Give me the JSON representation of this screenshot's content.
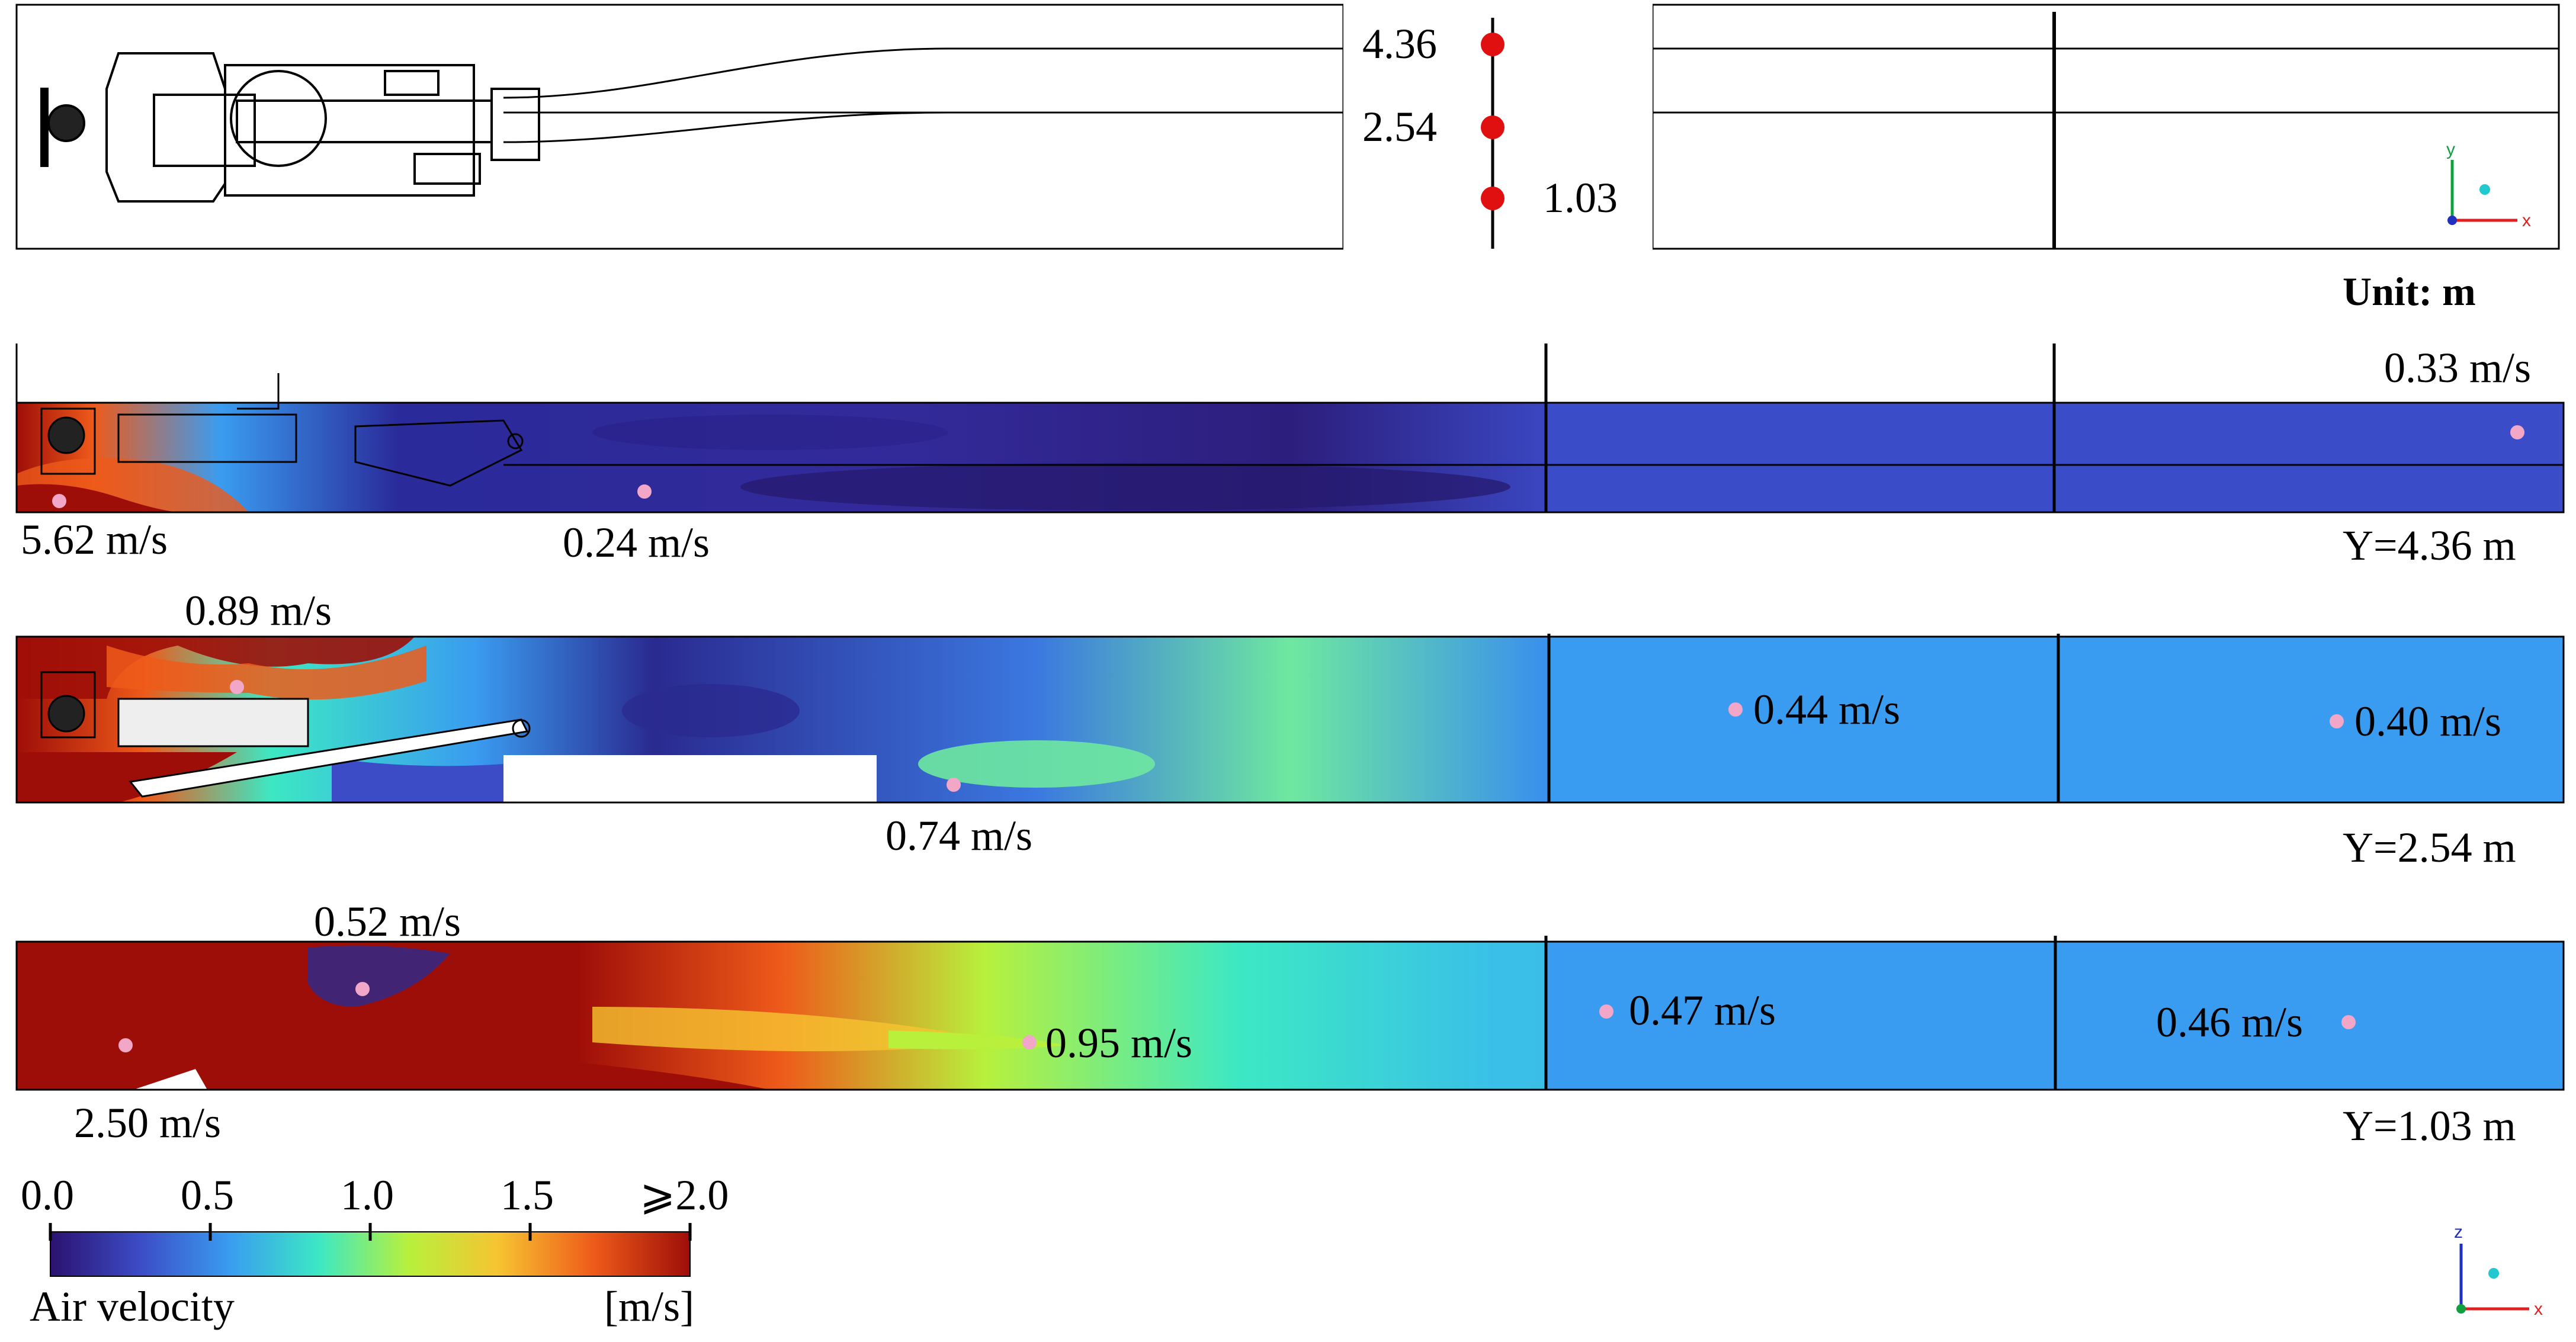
{
  "plan_view": {
    "heights": [
      "4.36",
      "2.54",
      "1.03"
    ],
    "unit_label": "Unit: m",
    "axis_labels": [
      "y",
      "x"
    ]
  },
  "panels": [
    {
      "plane_label": "Y=4.36 m",
      "points": [
        {
          "name": "dust-source",
          "label": "5.62 m/s",
          "value": 5.62
        },
        {
          "name": "mid-upstream",
          "label": "0.24 m/s",
          "value": 0.24
        },
        {
          "name": "far-downstream",
          "label": "0.33 m/s",
          "value": 0.33
        }
      ]
    },
    {
      "plane_label": "Y=2.54 m",
      "points": [
        {
          "name": "cutter-top",
          "label": "0.89 m/s",
          "value": 0.89
        },
        {
          "name": "mid-upstream",
          "label": "0.74 m/s",
          "value": 0.74
        },
        {
          "name": "downstream-1",
          "label": "0.44 m/s",
          "value": 0.44
        },
        {
          "name": "downstream-2",
          "label": "0.40 m/s",
          "value": 0.4
        }
      ]
    },
    {
      "plane_label": "Y=1.03 m",
      "points": [
        {
          "name": "dust-source",
          "label": "2.50 m/s",
          "value": 2.5
        },
        {
          "name": "vortex",
          "label": "0.52 m/s",
          "value": 0.52
        },
        {
          "name": "mid-upstream",
          "label": "0.95 m/s",
          "value": 0.95
        },
        {
          "name": "downstream-1",
          "label": "0.47 m/s",
          "value": 0.47
        },
        {
          "name": "downstream-2",
          "label": "0.46 m/s",
          "value": 0.46
        }
      ]
    }
  ],
  "colorbar": {
    "title": "Air velocity",
    "unit": "[m/s]",
    "ticks": [
      "0.0",
      "0.5",
      "1.0",
      "1.5",
      "⩾2.0"
    ],
    "colors": [
      "#2b1270",
      "#3c4cc6",
      "#3a9cf0",
      "#3ce8c4",
      "#b8f03c",
      "#f6c431",
      "#ee5a1a",
      "#9e0e08"
    ]
  },
  "axis_triad_bottom": {
    "labels": [
      "z",
      "x"
    ]
  },
  "colors": {
    "marker": "#e01010",
    "probe": "#f2a6c8",
    "downstream": "#3d8ce6",
    "axis_x": "#e02020",
    "axis_y": "#10a040",
    "axis_z": "#2030c0",
    "axis_dot": "#20c8d0"
  }
}
